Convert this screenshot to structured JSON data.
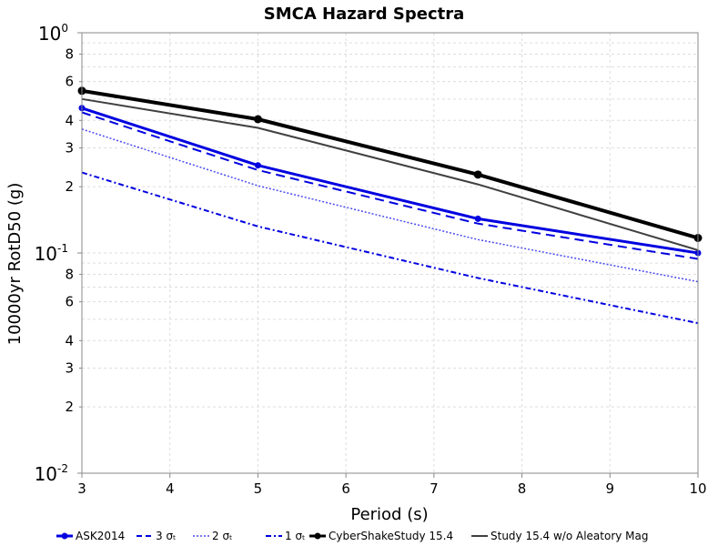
{
  "chart_data": {
    "type": "line",
    "title": "SMCA Hazard Spectra",
    "xlabel": "Period (s)",
    "ylabel": "10000yr RotD50 (g)",
    "x_scale": "linear",
    "y_scale": "log",
    "xlim": [
      3,
      10
    ],
    "ylim": [
      0.01,
      1
    ],
    "x_ticks": [
      "3",
      "4",
      "5",
      "6",
      "7",
      "8",
      "9",
      "10"
    ],
    "y_major_ticks": [
      {
        "value": 1,
        "base": "10",
        "exp": "0"
      },
      {
        "value": 0.1,
        "base": "10",
        "exp": "-1"
      },
      {
        "value": 0.01,
        "base": "10",
        "exp": "-2"
      }
    ],
    "y_minor_ticks": [
      {
        "value": 0.8,
        "label": "8"
      },
      {
        "value": 0.6,
        "label": "6"
      },
      {
        "value": 0.4,
        "label": "4"
      },
      {
        "value": 0.3,
        "label": "3"
      },
      {
        "value": 0.2,
        "label": "2"
      },
      {
        "value": 0.08,
        "label": "8"
      },
      {
        "value": 0.06,
        "label": "6"
      },
      {
        "value": 0.04,
        "label": "4"
      },
      {
        "value": 0.03,
        "label": "3"
      },
      {
        "value": 0.02,
        "label": "2"
      }
    ],
    "grid": true,
    "legend_position": "bottom",
    "series": [
      {
        "name": "ASK2014",
        "color": "#0000e0",
        "dash": "solid",
        "width": 3,
        "markers": true,
        "x": [
          3,
          5,
          7.5,
          10
        ],
        "y": [
          0.455,
          0.25,
          0.143,
          0.1
        ]
      },
      {
        "name": "3 σₜ",
        "color": "#0000e0",
        "dash": "dashed",
        "width": 2,
        "markers": false,
        "x": [
          3,
          5,
          7.5,
          10
        ],
        "y": [
          0.435,
          0.238,
          0.136,
          0.094
        ]
      },
      {
        "name": "2 σₜ",
        "color": "#4b4bf0",
        "dash": "dotted",
        "width": 1.5,
        "markers": false,
        "x": [
          3,
          5,
          7.5,
          10
        ],
        "y": [
          0.365,
          0.202,
          0.115,
          0.074
        ]
      },
      {
        "name": "1 σₜ",
        "color": "#0000e0",
        "dash": "dashdot",
        "width": 2,
        "markers": false,
        "x": [
          3,
          5,
          7.5,
          10
        ],
        "y": [
          0.232,
          0.132,
          0.077,
          0.048
        ]
      },
      {
        "name": "CyberShakeStudy 15.4",
        "color": "#000000",
        "dash": "solid",
        "width": 4,
        "markers": true,
        "x": [
          3,
          5,
          7.5,
          10
        ],
        "y": [
          0.545,
          0.405,
          0.227,
          0.117
        ]
      },
      {
        "name": "Study 15.4 w/o Aleatory Mag",
        "color": "#404040",
        "dash": "solid",
        "width": 2,
        "markers": false,
        "x": [
          3,
          5,
          7.5,
          10
        ],
        "y": [
          0.5,
          0.37,
          0.205,
          0.103
        ]
      }
    ]
  }
}
